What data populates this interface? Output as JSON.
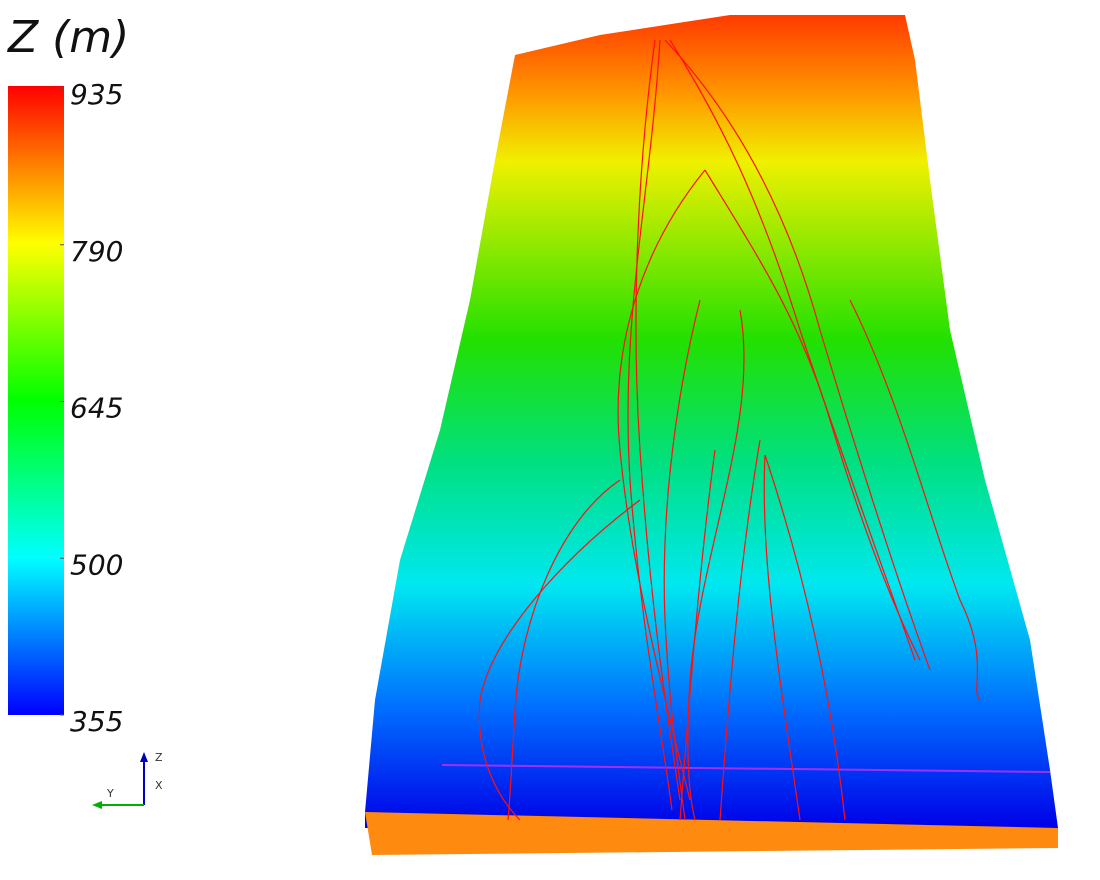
{
  "chart_data": {
    "type": "colorbar",
    "title": "Z (m)",
    "clim": [
      355,
      935
    ],
    "cticks": [
      935,
      790,
      645,
      500,
      355
    ],
    "colormap": [
      "#0000ff",
      "#00ffff",
      "#00ff00",
      "#ffff00",
      "#ff0000"
    ],
    "axes_labels": [
      "Z",
      "X",
      "Y"
    ]
  }
}
